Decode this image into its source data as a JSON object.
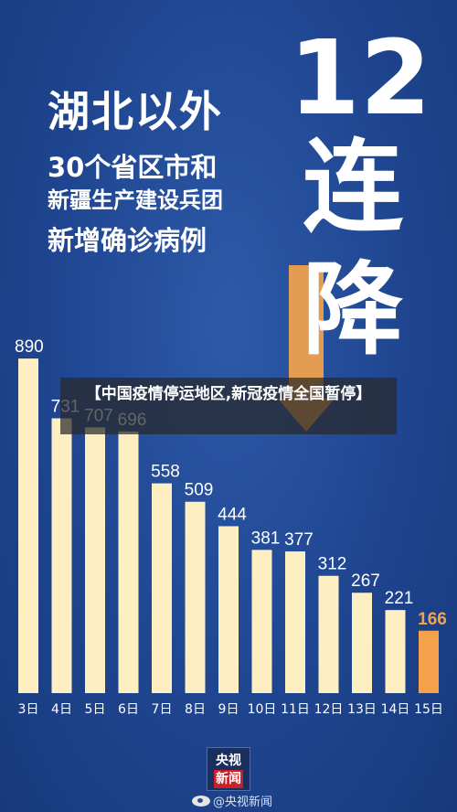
{
  "headline": {
    "line1": "湖北以外",
    "line2": "30个省区市和",
    "line3": "新疆生产建设兵团",
    "line4": "新增确诊病例"
  },
  "big_text": {
    "number": "12",
    "char1": "连",
    "char2": "降"
  },
  "overlay_title": "【中国疫情停运地区,新冠疫情全国暂停】",
  "logo": {
    "line1": "央视",
    "line2": "新闻"
  },
  "credit": "@央视新闻",
  "colors": {
    "bar": "#fdefc1",
    "highlight_bar": "#f4a24c",
    "background": "#1f4590"
  },
  "chart_data": {
    "type": "bar",
    "categories": [
      "3日",
      "4日",
      "5日",
      "6日",
      "7日",
      "8日",
      "9日",
      "10日",
      "11日",
      "12日",
      "13日",
      "14日",
      "15日"
    ],
    "values": [
      890,
      731,
      707,
      696,
      558,
      509,
      444,
      381,
      377,
      312,
      267,
      221,
      166
    ],
    "data_labels": [
      "890",
      "731",
      "707",
      "696",
      "558",
      "509",
      "444",
      "381",
      "377",
      "312",
      "267",
      "221",
      "166"
    ],
    "highlight_index": 12,
    "title": "",
    "xlabel": "",
    "ylabel": "",
    "ylim": [
      0,
      900
    ],
    "grid": false
  }
}
